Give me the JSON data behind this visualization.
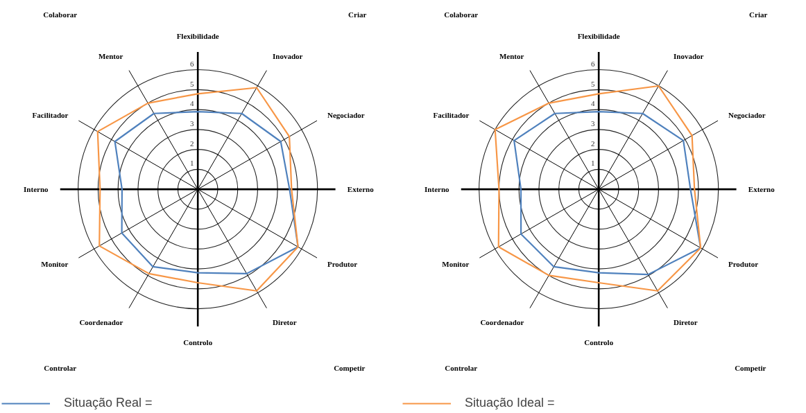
{
  "chart_data": [
    {
      "type": "radar",
      "categories": [
        "Flexibilidade",
        "Inovador",
        "Negociador",
        "Externo",
        "Produtor",
        "Diretor",
        "Controlo",
        "Coordenador",
        "Monitor",
        "Interno",
        "Facilitador",
        "Mentor"
      ],
      "ylim": [
        0,
        6
      ],
      "yticks": [
        1,
        2,
        3,
        4,
        5,
        6
      ],
      "grid": true,
      "legend": "bottom left",
      "annotations": [
        "Colaborar",
        "Criar",
        "Controlar",
        "Competir"
      ],
      "series": [
        {
          "name": "Situação Real =",
          "color": "#4f81bd",
          "values": [
            3.9,
            4.4,
            4.8,
            4.6,
            5.8,
            4.9,
            4.2,
            4.5,
            4.4,
            3.8,
            4.8,
            4.4
          ]
        },
        {
          "color": "#f79646",
          "values": [
            4.8,
            5.9,
            5.3,
            4.7,
            5.8,
            5.9,
            4.7,
            4.9,
            5.7,
            4.9,
            5.8,
            5.0
          ]
        }
      ]
    },
    {
      "type": "radar",
      "categories": [
        "Flexibilidade",
        "Inovador",
        "Negociador",
        "Externo",
        "Produtor",
        "Diretor",
        "Controlo",
        "Coordenador",
        "Monitor",
        "Interno",
        "Facilitador",
        "Mentor"
      ],
      "ylim": [
        0,
        6
      ],
      "yticks": [
        1,
        2,
        3,
        4,
        5,
        6
      ],
      "grid": true,
      "legend": "bottom left",
      "annotations": [
        "Colaborar",
        "Criar",
        "Controlar",
        "Competir"
      ],
      "series": [
        {
          "color": "#4f81bd",
          "values": [
            3.9,
            4.4,
            4.9,
            4.6,
            5.9,
            4.95,
            4.2,
            4.5,
            4.5,
            3.9,
            4.9,
            4.4
          ]
        },
        {
          "name": "Situação Ideal =",
          "color": "#f79646",
          "values": [
            4.8,
            6.0,
            5.4,
            4.8,
            5.9,
            5.9,
            4.7,
            5.0,
            5.8,
            5.0,
            6.0,
            5.0
          ]
        }
      ]
    }
  ]
}
